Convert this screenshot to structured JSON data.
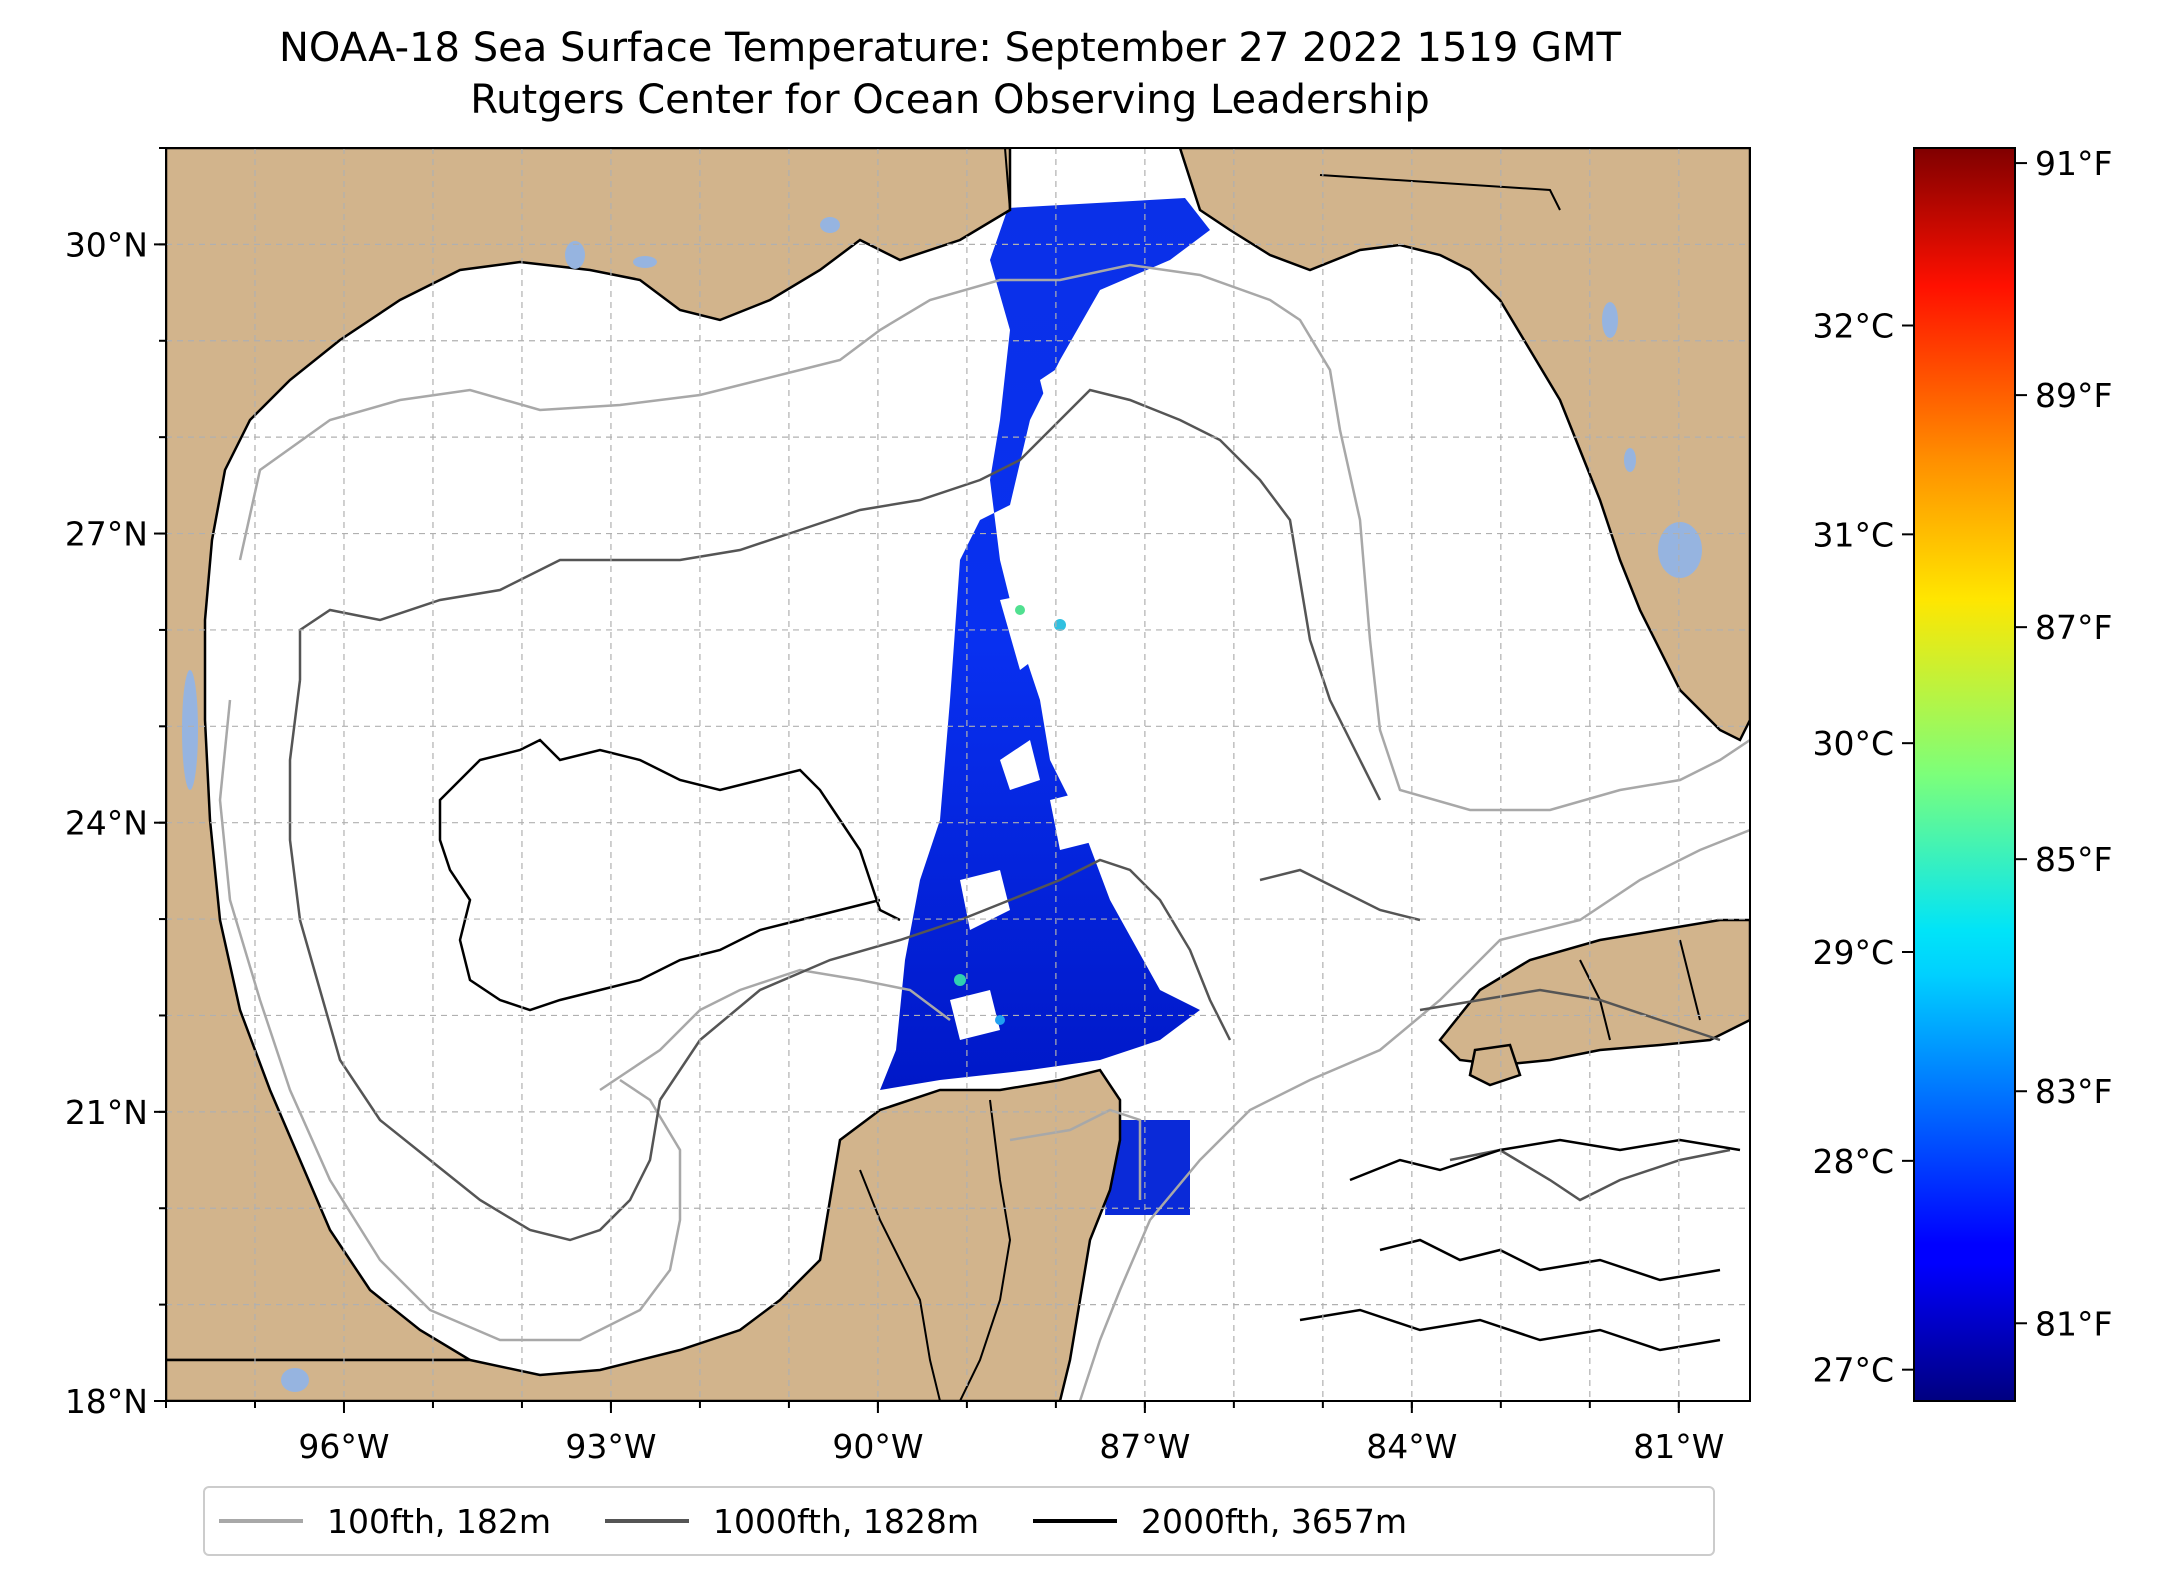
{
  "title": {
    "line1": "NOAA-18 Sea Surface Temperature: September 27 2022 1519 GMT",
    "line2": "Rutgers Center for Ocean Observing Leadership"
  },
  "map": {
    "lon_range": [
      -98.0,
      -80.2
    ],
    "lat_range": [
      18.0,
      31.0
    ],
    "lat_ticks": [
      {
        "value": 30,
        "label": "30°N"
      },
      {
        "value": 27,
        "label": "27°N"
      },
      {
        "value": 24,
        "label": "24°N"
      },
      {
        "value": 21,
        "label": "21°N"
      },
      {
        "value": 18,
        "label": "18°N"
      }
    ],
    "lon_ticks": [
      {
        "value": -96,
        "label": "96°W"
      },
      {
        "value": -93,
        "label": "93°W"
      },
      {
        "value": -90,
        "label": "90°W"
      },
      {
        "value": -87,
        "label": "87°W"
      },
      {
        "value": -84,
        "label": "84°W"
      },
      {
        "value": -81,
        "label": "81°W"
      }
    ],
    "land_color": "#d2b48c",
    "lake_color": "#96b4e0",
    "gridlines": true
  },
  "colorbar": {
    "colormap": "jet",
    "range_c": [
      26.85,
      32.85
    ],
    "celsius_ticks": [
      {
        "value": 32,
        "label": "32°C"
      },
      {
        "value": 31,
        "label": "31°C"
      },
      {
        "value": 30,
        "label": "30°C"
      },
      {
        "value": 29,
        "label": "29°C"
      },
      {
        "value": 28,
        "label": "28°C"
      },
      {
        "value": 27,
        "label": "27°C"
      }
    ],
    "fahrenheit_ticks": [
      {
        "value": 91,
        "label": "91°F"
      },
      {
        "value": 89,
        "label": "89°F"
      },
      {
        "value": 87,
        "label": "87°F"
      },
      {
        "value": 85,
        "label": "85°F"
      },
      {
        "value": 83,
        "label": "83°F"
      },
      {
        "value": 81,
        "label": "81°F"
      }
    ]
  },
  "legend": [
    {
      "label": "100fth, 182m",
      "color": "#a8a8a8"
    },
    {
      "label": "1000fth, 1828m",
      "color": "#555555"
    },
    {
      "label": "2000fth, 3657m",
      "color": "#000000"
    }
  ]
}
